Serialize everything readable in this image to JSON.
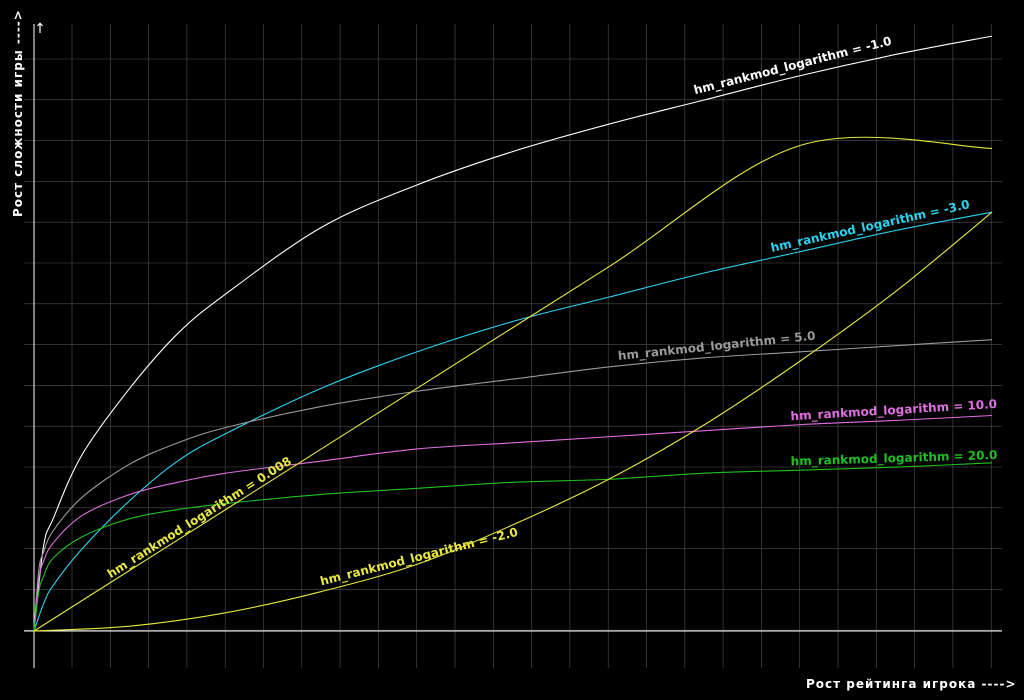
{
  "chart_data": {
    "type": "line",
    "title": "",
    "xlabel": "Рост рейтинга игрока ---->",
    "ylabel": "Рост сложности игры ---->",
    "xlim": [
      0,
      1
    ],
    "ylim": [
      0,
      1
    ],
    "grid": true,
    "background": "#000000",
    "grid_color": "#505050",
    "axis_color": "#ffffff",
    "series": [
      {
        "name": "hm_rankmod_logarithm = -1.0",
        "color": "#ffffff",
        "x": [
          0,
          0.01,
          0.02,
          0.05,
          0.1,
          0.15,
          0.2,
          0.3,
          0.4,
          0.5,
          0.6,
          0.7,
          0.8,
          0.9,
          1.0
        ],
        "y": [
          0,
          0.14,
          0.185,
          0.29,
          0.4,
          0.49,
          0.555,
          0.665,
          0.735,
          0.79,
          0.835,
          0.875,
          0.915,
          0.95,
          0.98
        ]
      },
      {
        "name": "hm_rankmod_logarithm = -3.0",
        "color": "#2ad4f0",
        "x": [
          0,
          0.01,
          0.02,
          0.05,
          0.1,
          0.15,
          0.2,
          0.3,
          0.4,
          0.5,
          0.6,
          0.7,
          0.8,
          0.9,
          1.0
        ],
        "y": [
          0,
          0.045,
          0.075,
          0.135,
          0.215,
          0.28,
          0.325,
          0.4,
          0.46,
          0.51,
          0.55,
          0.59,
          0.625,
          0.66,
          0.69
        ]
      },
      {
        "name": "hm_rankmod_logarithm = 5.0",
        "color": "#9a9a9a",
        "x": [
          0,
          0.005,
          0.01,
          0.02,
          0.05,
          0.1,
          0.15,
          0.2,
          0.3,
          0.4,
          0.5,
          0.6,
          0.7,
          0.8,
          0.9,
          1.0
        ],
        "y": [
          0,
          0.1,
          0.13,
          0.165,
          0.22,
          0.275,
          0.31,
          0.335,
          0.37,
          0.395,
          0.415,
          0.435,
          0.45,
          0.46,
          0.47,
          0.48
        ]
      },
      {
        "name": "hm_rankmod_logarithm = 10.0",
        "color": "#e070e0",
        "x": [
          0,
          0.005,
          0.01,
          0.02,
          0.05,
          0.1,
          0.15,
          0.2,
          0.3,
          0.4,
          0.5,
          0.6,
          0.7,
          0.8,
          0.9,
          1.0
        ],
        "y": [
          0,
          0.085,
          0.115,
          0.145,
          0.19,
          0.225,
          0.245,
          0.26,
          0.28,
          0.3,
          0.31,
          0.32,
          0.33,
          0.34,
          0.347,
          0.355
        ]
      },
      {
        "name": "hm_rankmod_logarithm = 20.0",
        "color": "#20c020",
        "x": [
          0,
          0.005,
          0.01,
          0.02,
          0.05,
          0.1,
          0.15,
          0.2,
          0.3,
          0.4,
          0.5,
          0.6,
          0.7,
          0.8,
          0.9,
          1.0
        ],
        "y": [
          0,
          0.065,
          0.09,
          0.12,
          0.155,
          0.185,
          0.2,
          0.21,
          0.225,
          0.235,
          0.245,
          0.25,
          0.26,
          0.265,
          0.27,
          0.277
        ]
      },
      {
        "name": "hm_rankmod_logarithm = 0.008",
        "color": "#e8e840",
        "x": [
          0,
          0.2,
          0.4,
          0.6,
          0.8,
          1.0
        ],
        "y": [
          0,
          0.2,
          0.4,
          0.6,
          0.8,
          0.795
        ]
      },
      {
        "name": "hm_rankmod_logarithm = -2.0",
        "color": "#e8e840",
        "x": [
          0,
          0.1,
          0.2,
          0.3,
          0.4,
          0.5,
          0.6,
          0.7,
          0.8,
          0.9,
          1.0
        ],
        "y": [
          0,
          0.008,
          0.03,
          0.065,
          0.11,
          0.175,
          0.25,
          0.34,
          0.445,
          0.56,
          0.69
        ]
      }
    ]
  }
}
